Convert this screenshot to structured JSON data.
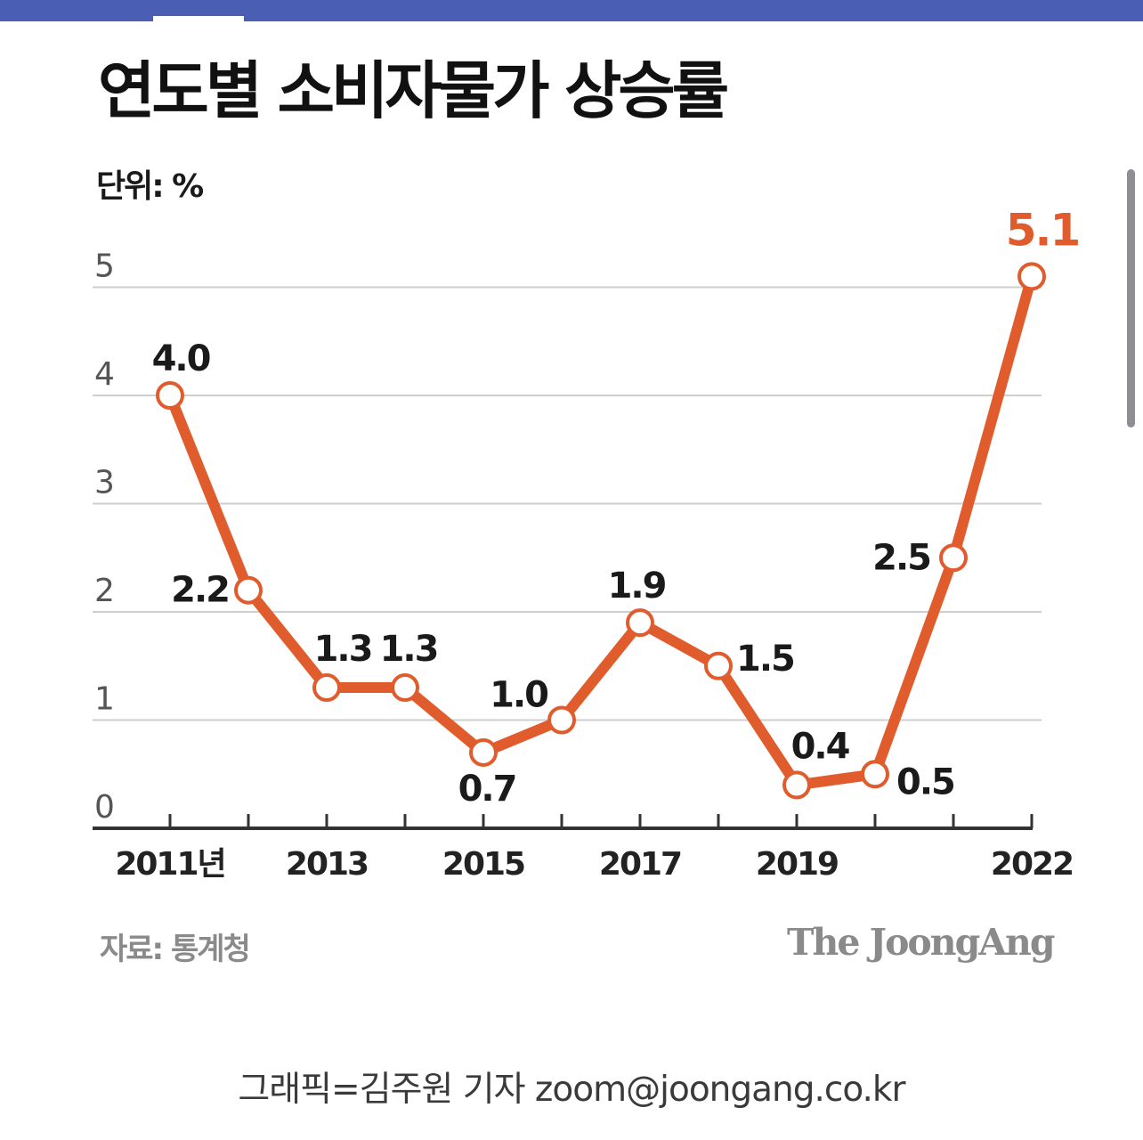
{
  "chart_data": {
    "type": "line",
    "title": "연도별 소비자물가 상승률",
    "unit_label": "단위: %",
    "x": [
      2011,
      2012,
      2013,
      2014,
      2015,
      2016,
      2017,
      2018,
      2019,
      2020,
      2021,
      2022
    ],
    "series": [
      {
        "values": [
          4.0,
          2.2,
          1.3,
          1.3,
          0.7,
          1.0,
          1.9,
          1.5,
          0.4,
          0.5,
          2.5,
          5.1
        ]
      }
    ],
    "data_labels": [
      "4.0",
      "2.2",
      "1.3",
      "1.3",
      "0.7",
      "1.0",
      "1.9",
      "1.5",
      "0.4",
      "0.5",
      "2.5",
      "5.1"
    ],
    "x_tick_labels": [
      {
        "x": 2011,
        "label": "2011년"
      },
      {
        "x": 2013,
        "label": "2013"
      },
      {
        "x": 2015,
        "label": "2015"
      },
      {
        "x": 2017,
        "label": "2017"
      },
      {
        "x": 2019,
        "label": "2019"
      },
      {
        "x": 2022,
        "label": "2022"
      }
    ],
    "y_ticks": [
      "0",
      "1",
      "2",
      "3",
      "4",
      "5"
    ],
    "ylim": [
      0,
      5
    ],
    "grid": true,
    "colors": {
      "line": "#e05c2c",
      "highlight_label": "#e05c2c",
      "grid": "#cfcfcf",
      "axis": "#333333"
    }
  },
  "footer": {
    "source": "자료: 통계청",
    "brand": "The JoongAng",
    "credit": "그래픽=김주원 기자 zoom@joongang.co.kr"
  }
}
